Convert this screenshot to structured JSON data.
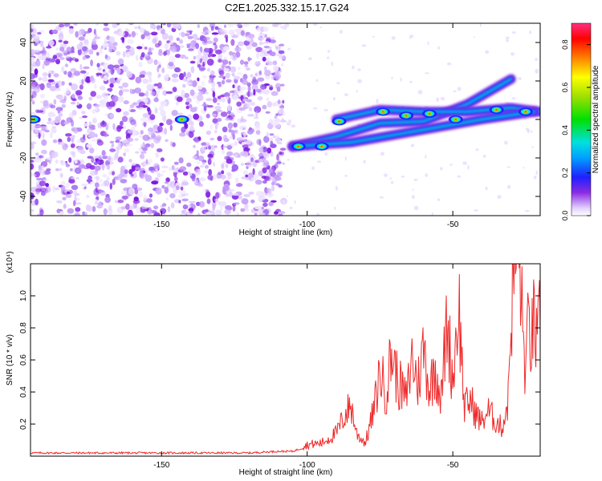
{
  "title": "C2E1.2025.332.15.17.G24",
  "chart_data": [
    {
      "type": "heatmap",
      "xlabel": "Height of straight line (km)",
      "ylabel": "Frequency (Hz)",
      "xlim": [
        -195,
        -20
      ],
      "ylim": [
        -50,
        50
      ],
      "xticks": [
        -150,
        -100,
        -50
      ],
      "yticks": [
        -40,
        -20,
        0,
        20,
        40
      ],
      "colorbar": {
        "label": "Normalized spectral amplitude",
        "range": [
          0.0,
          0.9
        ],
        "ticks": [
          0.0,
          0.2,
          0.4,
          0.6,
          0.8
        ]
      },
      "ridges": [
        {
          "name": "upper track",
          "points": [
            [
              -105,
              -14
            ],
            [
              -90,
              -9
            ],
            [
              -75,
              -2
            ],
            [
              -60,
              -1
            ],
            [
              -45,
              8
            ],
            [
              -30,
              21
            ]
          ]
        },
        {
          "name": "middle track",
          "points": [
            [
              -90,
              0
            ],
            [
              -75,
              5
            ],
            [
              -60,
              4
            ],
            [
              -45,
              4
            ],
            [
              -30,
              6
            ],
            [
              -20,
              4
            ]
          ]
        },
        {
          "name": "lower track",
          "points": [
            [
              -105,
              -14
            ],
            [
              -85,
              -12
            ],
            [
              -70,
              -8
            ],
            [
              -55,
              -4
            ],
            [
              -40,
              0
            ],
            [
              -22,
              4
            ]
          ]
        }
      ],
      "hotspots": [
        [
          -103,
          -14
        ],
        [
          -95,
          -14
        ],
        [
          -89,
          -1
        ],
        [
          -74,
          4
        ],
        [
          -66,
          2
        ],
        [
          -58,
          3
        ],
        [
          -49,
          0
        ],
        [
          -35,
          5
        ],
        [
          -25,
          4
        ],
        [
          -194,
          0
        ],
        [
          -143,
          0
        ]
      ]
    },
    {
      "type": "line",
      "xlabel": "Height of straight line (km)",
      "ylabel": "SNR (10 * v/v)",
      "y_scale_label": "(x10⁴)",
      "xlim": [
        -195,
        -20
      ],
      "ylim": [
        0,
        1.2
      ],
      "xticks": [
        -150,
        -100,
        -50
      ],
      "yticks": [
        0.2,
        0.4,
        0.6,
        0.8,
        1.0
      ],
      "series": [
        {
          "name": "SNR",
          "x": [
            -195,
            -180,
            -160,
            -140,
            -120,
            -110,
            -105,
            -100,
            -95,
            -90,
            -87,
            -85,
            -83,
            -80,
            -77,
            -75,
            -73,
            -71,
            -69,
            -66,
            -64,
            -62,
            -60,
            -58,
            -56,
            -54,
            -52,
            -50,
            -48,
            -46,
            -44,
            -42,
            -40,
            -38,
            -35,
            -33,
            -31,
            -30,
            -29,
            -28,
            -27,
            -26,
            -25,
            -24,
            -23,
            -22,
            -21,
            -20
          ],
          "values": [
            0.02,
            0.02,
            0.02,
            0.02,
            0.02,
            0.03,
            0.03,
            0.06,
            0.07,
            0.12,
            0.22,
            0.27,
            0.12,
            0.07,
            0.25,
            0.45,
            0.33,
            0.55,
            0.4,
            0.3,
            0.52,
            0.38,
            0.58,
            0.35,
            0.48,
            0.3,
            0.72,
            0.4,
            0.82,
            0.25,
            0.3,
            0.22,
            0.18,
            0.24,
            0.18,
            0.15,
            0.3,
            0.75,
            0.95,
            1.15,
            1.05,
            0.65,
            0.45,
            0.7,
            0.6,
            0.72,
            0.55,
            0.75
          ]
        }
      ]
    }
  ]
}
